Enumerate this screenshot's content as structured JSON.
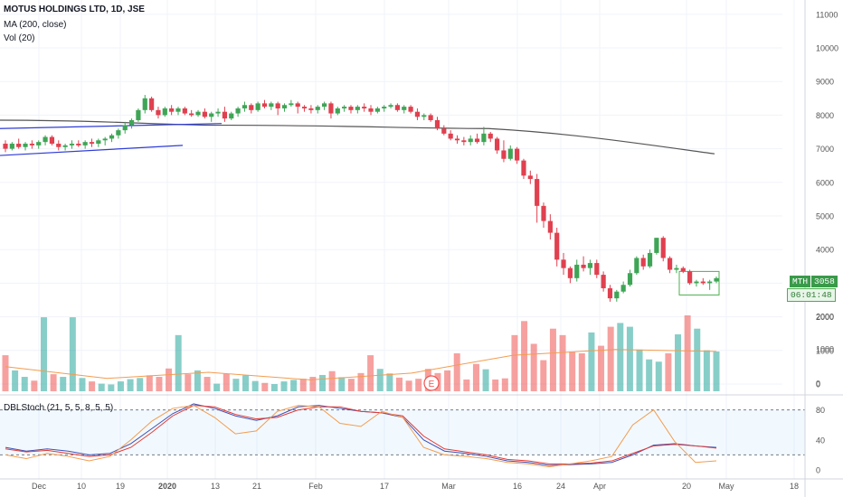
{
  "header": {
    "symbol_title": "MOTUS HOLDINGS LTD, 1D, JSE",
    "ma_label": "MA (200, close)",
    "vol_label": "Vol (20)"
  },
  "oscillator": {
    "label": "DBLStoch (21, 5, 5, 8, 5, 5)",
    "ticks": [
      "80",
      "40",
      "0"
    ]
  },
  "price_axis": {
    "ticks": [
      "11000",
      "10000",
      "9000",
      "8000",
      "7000",
      "6000",
      "5000",
      "4000",
      "3000",
      "2000",
      "1000",
      "0"
    ]
  },
  "time_axis": {
    "labels": [
      "Dec",
      "10",
      "19",
      "2020",
      "13",
      "21",
      "Feb",
      "17",
      "Mar",
      "16",
      "24",
      "Apr",
      "20",
      "May",
      "18"
    ]
  },
  "badges": {
    "symbol": "MTH",
    "last_price": "3058",
    "countdown": "06:01:48",
    "earnings_marker": "E"
  },
  "colors": {
    "up": "#26a69a",
    "down": "#ef5350",
    "up_candle": "#3fa556",
    "down_candle": "#e0404f",
    "ma": "#555555",
    "trendline": "#2e3cd6",
    "rectangle": "#4caf50",
    "vol_ma": "#f39c4f",
    "stoch_fast": "#3f51b5",
    "stoch_slow": "#e53935",
    "stoch_d": "#f39c4f",
    "grid": "#f0f3fa"
  },
  "chart_data": [
    {
      "type": "candlestick",
      "title": "MOTUS HOLDINGS LTD, 1D, JSE",
      "ylim": [
        0,
        11500
      ],
      "candles": [
        [
          7150,
          7250,
          6900,
          7000
        ],
        [
          7000,
          7200,
          6950,
          7150
        ],
        [
          7150,
          7300,
          7000,
          7050
        ],
        [
          7050,
          7200,
          6950,
          7150
        ],
        [
          7150,
          7250,
          7000,
          7100
        ],
        [
          7100,
          7250,
          7000,
          7200
        ],
        [
          7200,
          7400,
          7100,
          7350
        ],
        [
          7350,
          7400,
          7100,
          7150
        ],
        [
          7150,
          7250,
          6950,
          7050
        ],
        [
          7050,
          7150,
          6950,
          7100
        ],
        [
          7100,
          7250,
          7000,
          7150
        ],
        [
          7150,
          7250,
          7050,
          7100
        ],
        [
          7100,
          7250,
          7000,
          7200
        ],
        [
          7200,
          7300,
          7050,
          7150
        ],
        [
          7150,
          7300,
          7050,
          7250
        ],
        [
          7250,
          7350,
          7100,
          7300
        ],
        [
          7300,
          7450,
          7200,
          7400
        ],
        [
          7400,
          7600,
          7300,
          7550
        ],
        [
          7550,
          7800,
          7450,
          7700
        ],
        [
          7700,
          7900,
          7600,
          7850
        ],
        [
          7850,
          8200,
          7800,
          8150
        ],
        [
          8150,
          8600,
          8050,
          8500
        ],
        [
          8500,
          8550,
          8100,
          8150
        ],
        [
          8150,
          8250,
          7900,
          8000
        ],
        [
          8000,
          8250,
          7950,
          8200
        ],
        [
          8200,
          8300,
          8000,
          8100
        ],
        [
          8100,
          8250,
          8000,
          8200
        ],
        [
          8200,
          8250,
          8000,
          8050
        ],
        [
          8050,
          8150,
          7950,
          8000
        ],
        [
          8000,
          8150,
          7950,
          8100
        ],
        [
          8100,
          8200,
          7900,
          7950
        ],
        [
          7950,
          8100,
          7800,
          8050
        ],
        [
          8050,
          8200,
          7950,
          8100
        ],
        [
          8100,
          8250,
          7800,
          7900
        ],
        [
          7900,
          8100,
          7850,
          8050
        ],
        [
          8050,
          8250,
          7950,
          8200
        ],
        [
          8200,
          8400,
          8100,
          8300
        ],
        [
          8300,
          8350,
          8050,
          8150
        ],
        [
          8150,
          8400,
          8100,
          8350
        ],
        [
          8350,
          8450,
          8200,
          8250
        ],
        [
          8250,
          8400,
          8150,
          8350
        ],
        [
          8350,
          8400,
          8000,
          8200
        ],
        [
          8200,
          8350,
          8100,
          8300
        ],
        [
          8300,
          8450,
          8250,
          8350
        ],
        [
          8350,
          8400,
          8050,
          8250
        ],
        [
          8250,
          8300,
          8100,
          8200
        ],
        [
          8200,
          8300,
          8050,
          8150
        ],
        [
          8150,
          8300,
          8050,
          8250
        ],
        [
          8250,
          8400,
          8150,
          8350
        ],
        [
          8350,
          8400,
          7900,
          8050
        ],
        [
          8050,
          8250,
          8000,
          8200
        ],
        [
          8200,
          8300,
          8100,
          8250
        ],
        [
          8250,
          8300,
          8050,
          8150
        ],
        [
          8150,
          8300,
          8050,
          8250
        ],
        [
          8250,
          8350,
          8100,
          8200
        ],
        [
          8200,
          8300,
          8000,
          8100
        ],
        [
          8100,
          8250,
          8050,
          8200
        ],
        [
          8200,
          8300,
          8100,
          8250
        ],
        [
          8250,
          8350,
          8200,
          8300
        ],
        [
          8300,
          8350,
          8100,
          8150
        ],
        [
          8150,
          8300,
          8050,
          8250
        ],
        [
          8250,
          8300,
          8050,
          8100
        ],
        [
          8100,
          8200,
          7850,
          7950
        ],
        [
          7950,
          8050,
          7850,
          8000
        ],
        [
          8000,
          8050,
          7800,
          7850
        ],
        [
          7850,
          7950,
          7550,
          7600
        ],
        [
          7600,
          7700,
          7400,
          7450
        ],
        [
          7450,
          7550,
          7250,
          7300
        ],
        [
          7300,
          7400,
          7150,
          7250
        ],
        [
          7250,
          7350,
          7100,
          7200
        ],
        [
          7200,
          7400,
          7100,
          7300
        ],
        [
          7300,
          7450,
          7150,
          7200
        ],
        [
          7200,
          7650,
          7100,
          7450
        ],
        [
          7450,
          7500,
          7200,
          7300
        ],
        [
          7300,
          7350,
          6850,
          6950
        ],
        [
          6950,
          7250,
          6600,
          6700
        ],
        [
          6700,
          7100,
          6650,
          7000
        ],
        [
          7000,
          7050,
          6550,
          6650
        ],
        [
          6650,
          6700,
          6100,
          6200
        ],
        [
          6200,
          6350,
          5950,
          6100
        ],
        [
          6100,
          6250,
          4800,
          5300
        ],
        [
          5300,
          5400,
          4650,
          4850
        ],
        [
          4850,
          5050,
          4300,
          4500
        ],
        [
          4500,
          4650,
          3500,
          3700
        ],
        [
          3700,
          3900,
          3250,
          3450
        ],
        [
          3450,
          3500,
          3000,
          3150
        ],
        [
          3150,
          3700,
          3050,
          3550
        ],
        [
          3550,
          3800,
          3350,
          3450
        ],
        [
          3450,
          3700,
          3250,
          3600
        ],
        [
          3600,
          3700,
          3150,
          3250
        ],
        [
          3250,
          3350,
          2750,
          2850
        ],
        [
          2850,
          2950,
          2450,
          2550
        ],
        [
          2550,
          2800,
          2450,
          2750
        ],
        [
          2750,
          3050,
          2700,
          2950
        ],
        [
          2950,
          3400,
          2900,
          3300
        ],
        [
          3300,
          3800,
          3250,
          3750
        ],
        [
          3750,
          3850,
          3400,
          3500
        ],
        [
          3500,
          4000,
          3450,
          3900
        ],
        [
          3900,
          4350,
          3850,
          4350
        ],
        [
          4350,
          4400,
          3650,
          3750
        ],
        [
          3750,
          3800,
          3300,
          3400
        ],
        [
          3400,
          3550,
          3300,
          3450
        ],
        [
          3450,
          3500,
          3300,
          3350
        ],
        [
          3350,
          3400,
          2950,
          3000
        ],
        [
          3000,
          3100,
          2900,
          3050
        ],
        [
          3050,
          3150,
          2950,
          3000
        ],
        [
          3000,
          3100,
          2800,
          3050
        ],
        [
          3050,
          3200,
          3000,
          3150
        ]
      ],
      "moving_average_200": [
        7850,
        7700,
        7600,
        6850
      ],
      "volume": [
        950,
        550,
        380,
        280,
        1950,
        450,
        380,
        1950,
        350,
        260,
        200,
        180,
        260,
        320,
        350,
        420,
        380,
        600,
        1480,
        450,
        550,
        380,
        200,
        460,
        330,
        420,
        270,
        220,
        190,
        260,
        300,
        330,
        380,
        430,
        530,
        370,
        330,
        480,
        950,
        590,
        470,
        360,
        280,
        330,
        590,
        480,
        550,
        1000,
        310,
        720,
        580,
        310,
        340,
        1480,
        1850,
        1250,
        820,
        1650,
        1480,
        1050,
        1000,
        1550,
        1200,
        1700,
        1800,
        1700,
        1100,
        840,
        780,
        1000,
        1500,
        2000,
        1650,
        1080,
        1050
      ],
      "volume_ma_20": [
        650,
        340,
        500,
        300,
        480,
        950,
        1100,
        1050
      ],
      "volume_ticks": [
        "2000",
        "1000",
        "0"
      ]
    },
    {
      "type": "line",
      "title": "DBLStoch (21, 5, 5, 8, 5, 5)",
      "ylim": [
        0,
        90
      ],
      "levels": [
        80,
        20
      ],
      "series": [
        {
          "values": [
            30,
            25,
            28,
            25,
            20,
            22,
            35,
            55,
            75,
            88,
            82,
            72,
            66,
            72,
            84,
            86,
            82,
            78,
            76,
            70,
            40,
            25,
            22,
            18,
            12,
            10,
            6,
            7,
            8,
            10,
            20,
            33,
            35,
            32,
            30
          ]
        },
        {
          "values": [
            28,
            24,
            26,
            22,
            18,
            20,
            30,
            50,
            72,
            86,
            84,
            74,
            68,
            70,
            80,
            84,
            84,
            78,
            76,
            72,
            45,
            28,
            24,
            20,
            14,
            12,
            8,
            8,
            9,
            12,
            22,
            32,
            34,
            32,
            29
          ]
        },
        {
          "values": [
            20,
            15,
            22,
            18,
            12,
            18,
            40,
            65,
            82,
            86,
            70,
            48,
            52,
            78,
            86,
            84,
            62,
            58,
            78,
            70,
            30,
            20,
            18,
            15,
            10,
            8,
            4,
            8,
            12,
            18,
            60,
            80,
            38,
            10,
            12
          ]
        }
      ]
    }
  ]
}
